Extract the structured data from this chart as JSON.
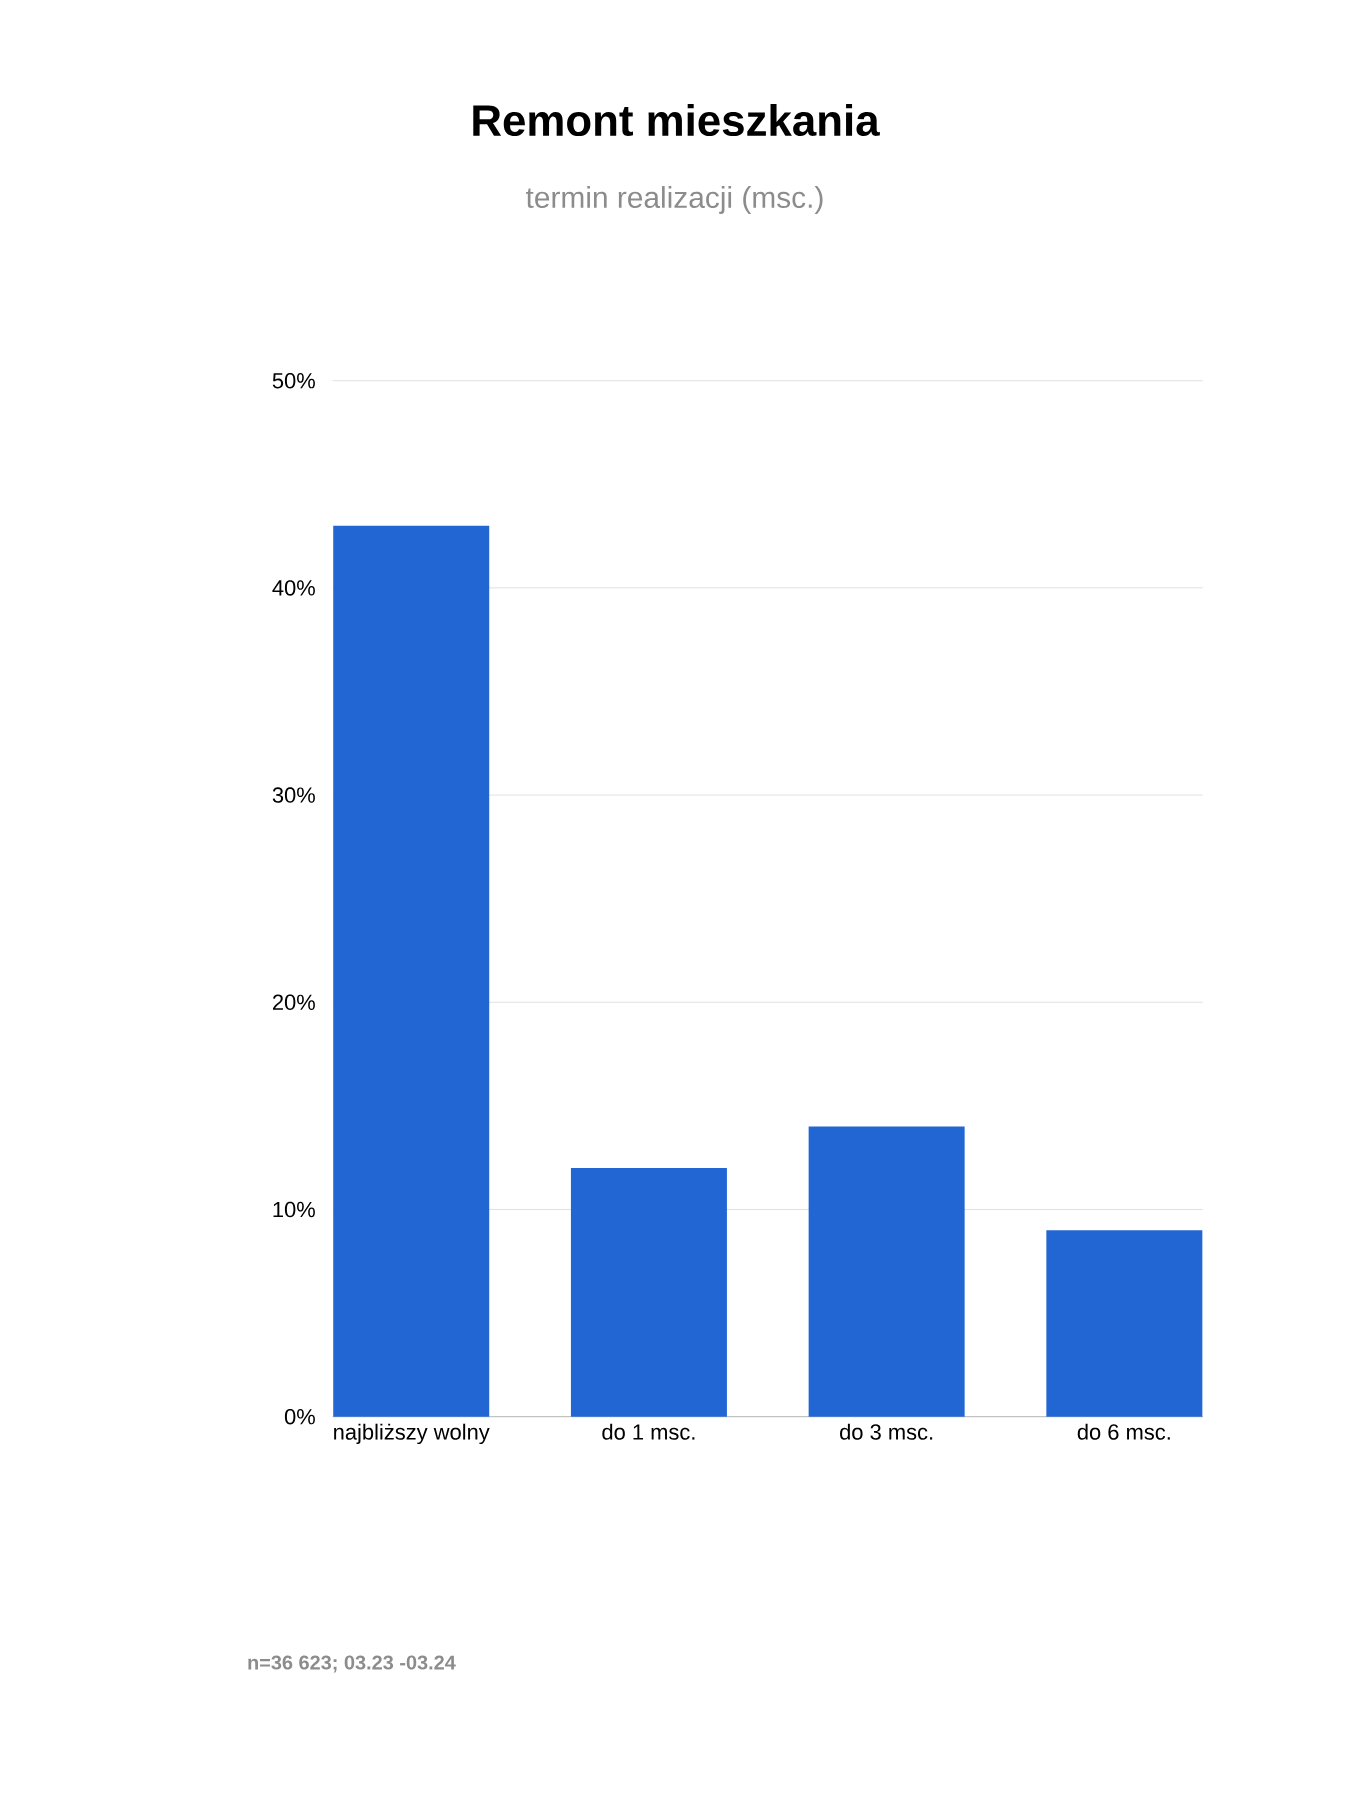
{
  "chart_data": {
    "type": "bar",
    "title": "Remont mieszkania",
    "subtitle": "termin realizacji (msc.)",
    "categories": [
      "najbliższy wolny",
      "do 1 msc.",
      "do 3 msc.",
      "do 6 msc."
    ],
    "values": [
      43,
      12,
      14,
      9
    ],
    "color": "#2266d4",
    "ylim": [
      0,
      50
    ],
    "yticks": [
      {
        "value": 0,
        "label": "0%"
      },
      {
        "value": 10,
        "label": "10%"
      },
      {
        "value": 20,
        "label": "20%"
      },
      {
        "value": 30,
        "label": "30%"
      },
      {
        "value": 40,
        "label": "40%"
      },
      {
        "value": 50,
        "label": "50%"
      }
    ],
    "grid": "y",
    "annotations": [
      "n=36 623; 03.23 -03.24"
    ]
  }
}
